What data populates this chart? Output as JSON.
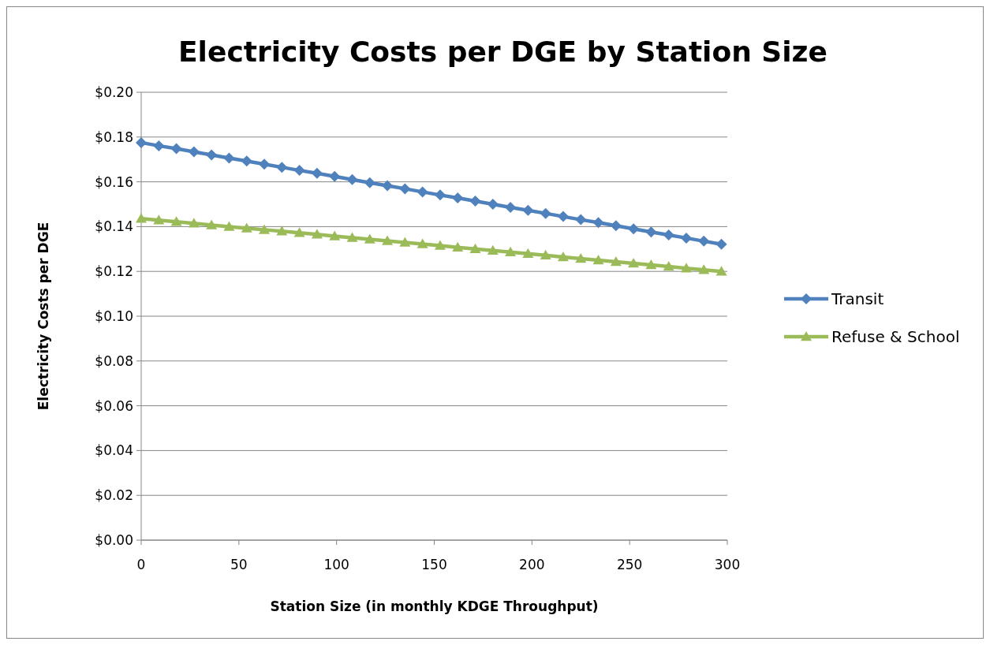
{
  "chart_data": {
    "type": "line",
    "title": "Electricity Costs per DGE by Station Size",
    "xlabel": "Station Size (in monthly KDGE Throughput)",
    "ylabel": "Electricity Costs per DGE",
    "x": [
      0,
      9,
      18,
      27,
      36,
      45,
      54,
      63,
      72,
      81,
      90,
      99,
      108,
      117,
      126,
      135,
      144,
      153,
      162,
      171,
      180,
      189,
      198,
      207,
      216,
      225,
      234,
      243,
      252,
      261,
      270,
      279,
      288,
      297
    ],
    "series": [
      {
        "name": "Transit",
        "color": "#4f81bd",
        "marker": "diamond",
        "values": [
          0.1775,
          0.1761,
          0.1748,
          0.1734,
          0.172,
          0.1706,
          0.1693,
          0.1679,
          0.1665,
          0.1651,
          0.1638,
          0.1624,
          0.161,
          0.1596,
          0.1583,
          0.1569,
          0.1555,
          0.1541,
          0.1528,
          0.1514,
          0.15,
          0.1486,
          0.1473,
          0.1459,
          0.1445,
          0.1431,
          0.1418,
          0.1404,
          0.139,
          0.1376,
          0.1363,
          0.1349,
          0.1335,
          0.1321
        ]
      },
      {
        "name": "Refuse & School",
        "color": "#9bbb59",
        "marker": "triangle",
        "values": [
          0.1436,
          0.1429,
          0.1422,
          0.1415,
          0.1407,
          0.14,
          0.1393,
          0.1386,
          0.1379,
          0.1372,
          0.1365,
          0.1357,
          0.135,
          0.1343,
          0.1336,
          0.1329,
          0.1322,
          0.1315,
          0.1307,
          0.13,
          0.1293,
          0.1286,
          0.1279,
          0.1272,
          0.1264,
          0.1257,
          0.125,
          0.1243,
          0.1236,
          0.1229,
          0.1222,
          0.1214,
          0.1207,
          0.12
        ]
      }
    ],
    "xlim": [
      0,
      300
    ],
    "xticks": [
      0,
      50,
      100,
      150,
      200,
      250,
      300
    ],
    "ylim": [
      0,
      0.2
    ],
    "yticks": [
      {
        "value": 0,
        "label": "$0.00"
      },
      {
        "value": 0.02,
        "label": "$0.02"
      },
      {
        "value": 0.04,
        "label": "$0.04"
      },
      {
        "value": 0.06,
        "label": "$0.06"
      },
      {
        "value": 0.08,
        "label": "$0.08"
      },
      {
        "value": 0.1,
        "label": "$0.10"
      },
      {
        "value": 0.12,
        "label": "$0.12"
      },
      {
        "value": 0.14,
        "label": "$0.14"
      },
      {
        "value": 0.16,
        "label": "$0.16"
      },
      {
        "value": 0.18,
        "label": "$0.18"
      },
      {
        "value": 0.2,
        "label": "$0.20"
      }
    ],
    "grid": "y",
    "legend": "right",
    "line_style": "solid"
  }
}
